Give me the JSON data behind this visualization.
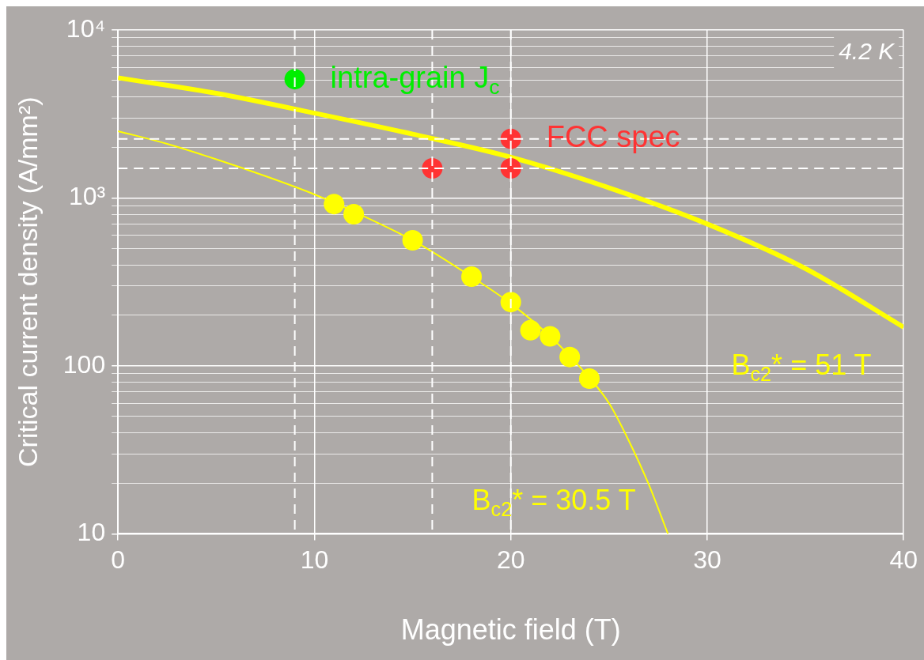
{
  "chart_data": {
    "type": "scatter",
    "xlabel": "Magnetic field (T)",
    "ylabel": "Critical current density (A/mm²)",
    "xlim": [
      0,
      40
    ],
    "xticks": [
      0,
      10,
      20,
      30,
      40
    ],
    "ylim": [
      10,
      10000
    ],
    "yticks": [
      {
        "value": 10,
        "label": "10"
      },
      {
        "value": 20,
        "label": null
      },
      {
        "value": 30,
        "label": null
      },
      {
        "value": 40,
        "label": null
      },
      {
        "value": 50,
        "label": null
      },
      {
        "value": 60,
        "label": null
      },
      {
        "value": 70,
        "label": null
      },
      {
        "value": 80,
        "label": null
      },
      {
        "value": 90,
        "label": null
      },
      {
        "value": 100,
        "label": "100"
      },
      {
        "value": 200,
        "label": null
      },
      {
        "value": 300,
        "label": null
      },
      {
        "value": 400,
        "label": null
      },
      {
        "value": 500,
        "label": null
      },
      {
        "value": 600,
        "label": null
      },
      {
        "value": 700,
        "label": null
      },
      {
        "value": 800,
        "label": null
      },
      {
        "value": 900,
        "label": null
      },
      {
        "value": 1000,
        "label": "10³"
      },
      {
        "value": 2000,
        "label": null
      },
      {
        "value": 3000,
        "label": null
      },
      {
        "value": 4000,
        "label": null
      },
      {
        "value": 5000,
        "label": null
      },
      {
        "value": 6000,
        "label": null
      },
      {
        "value": 7000,
        "label": null
      },
      {
        "value": 8000,
        "label": null
      },
      {
        "value": 9000,
        "label": null
      },
      {
        "value": 10000,
        "label": "10⁴"
      }
    ],
    "log": true,
    "grid": true,
    "legend": false,
    "marker": "circle",
    "series": [
      {
        "type": "line",
        "name": "B$_{c2}$* = 51 T",
        "marker": "none",
        "color": "#ffff00",
        "x": [
          0,
          5,
          10,
          15,
          20,
          25,
          30,
          35,
          40
        ],
        "values": [
          5200,
          4200,
          3200,
          2400,
          1750,
          1150,
          700,
          380,
          170
        ]
      },
      {
        "type": "line",
        "name": "B$_{c2}$* = 30.5 T",
        "marker": "none",
        "color": "#ffff00",
        "x": [
          0,
          2.5,
          5,
          7.5,
          10,
          12.5,
          15,
          17.5,
          20,
          22,
          24,
          25,
          26,
          27,
          28
        ],
        "values": [
          2500,
          2100,
          1700,
          1350,
          1050,
          780,
          560,
          370,
          235,
          150,
          85,
          60,
          36,
          20,
          10
        ]
      },
      {
        "color": "#ffff00",
        "x": [
          11,
          12,
          15,
          18,
          20,
          21,
          22,
          23,
          24
        ],
        "values": [
          920,
          800,
          560,
          340,
          240,
          163,
          150,
          113,
          84
        ]
      },
      {
        "name": "intra-grain J$_{c}$",
        "color": "#00ee00",
        "x": [
          9
        ],
        "values": [
          5100
        ]
      },
      {
        "name": "FCC spec",
        "color": "#ff3333",
        "x": [
          16,
          20,
          20
        ],
        "values": [
          1500,
          1500,
          2250
        ]
      }
    ],
    "ref_lines": [
      {
        "axis": "x",
        "value": 9,
        "color": "#ffffff",
        "line_style": "dashed"
      },
      {
        "axis": "x",
        "value": 16,
        "color": "#ffffff",
        "line_style": "dashed"
      },
      {
        "axis": "x",
        "value": 20,
        "color": "#ffffff",
        "line_style": "dashed"
      },
      {
        "axis": "y",
        "value": 1500,
        "color": "#ffffff",
        "line_style": "dashed"
      },
      {
        "axis": "y",
        "value": 2250,
        "color": "#ffffff",
        "line_style": "dashed"
      }
    ],
    "annotations": [
      "4.2 K"
    ]
  }
}
